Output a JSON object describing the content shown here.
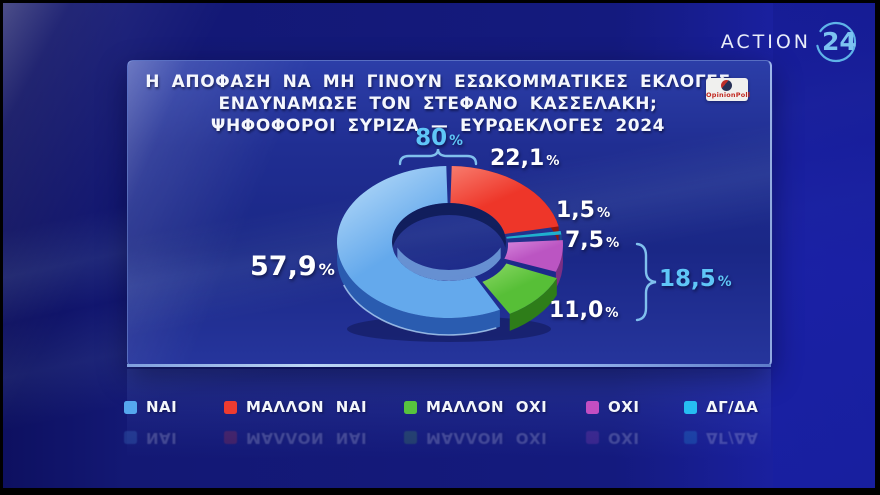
{
  "channel": {
    "word": "ACTION",
    "number": "24"
  },
  "poll_brand": "OpinionPoll",
  "accent_blue": "#5fc6f7",
  "chart_data": {
    "type": "donut",
    "title_lines": [
      "Η ΑΠΟΦΑΣΗ ΝΑ ΜΗ ΓΙΝΟΥΝ ΕΣΩΚΟΜΜΑΤΙΚΕΣ ΕΚΛΟΓΕΣ",
      "ΕΝΔΥΝΑΜΩΣΕ ΤΟΝ ΣΤΕΦΑΝΟ ΚΑΣΣΕΛΑΚΗ;",
      "ΨΗΦΟΦΟΡΟΙ ΣΥΡΙΖΑ — ΕΥΡΩΕΚΛΟΓΕΣ 2024"
    ],
    "percent_sign": "%",
    "slices": [
      {
        "label": "ΜΑΛΛΟΝ ΝΑΙ",
        "value": 22.1,
        "display": "22,1",
        "color": "#ee3629",
        "light": "#f87c6e",
        "dark": "#8e150e",
        "explode": [
          0,
          0
        ]
      },
      {
        "label": "ΔΓ/ΔΑ",
        "value": 1.5,
        "display": "1,5",
        "color": "#1fb0ce",
        "light": "#5ad2e6",
        "dark": "#0c7a92",
        "explode": [
          1,
          1
        ]
      },
      {
        "label": "ΟΧΙ",
        "value": 7.5,
        "display": "7,5",
        "color": "#bb55c2",
        "light": "#d685dc",
        "dark": "#7c2e84",
        "explode": [
          2,
          3
        ]
      },
      {
        "label": "ΜΑΛΛΟΝ ΟΧΙ",
        "value": 11.0,
        "display": "11,0",
        "color": "#57bf37",
        "light": "#8cd966",
        "dark": "#2e7d19",
        "explode": [
          5,
          6
        ]
      },
      {
        "label": "ΝΑΙ",
        "value": 57.9,
        "display": "57,9",
        "color": "#64a9ec",
        "light": "#bfe0fa",
        "dark": "#2a5cb0",
        "explode": [
          0,
          0
        ]
      }
    ],
    "aggregates": [
      {
        "display": "80",
        "groups": "ΝΑΙ + ΜΑΛΛΟΝ ΝΑΙ"
      },
      {
        "display": "18,5",
        "groups": "ΟΧΙ + ΜΑΛΛΟΝ ΟΧΙ"
      }
    ]
  },
  "legend": {
    "items": [
      {
        "label": "ΝΑΙ",
        "color": "#55a7ee"
      },
      {
        "label": "ΜΑΛΛΟΝ ΝΑΙ",
        "color": "#ee3b30"
      },
      {
        "label": "ΜΑΛΛΟΝ ΟΧΙ",
        "color": "#57c33e"
      },
      {
        "label": "ΟΧΙ",
        "color": "#c24ec2"
      },
      {
        "label": "ΔΓ/ΔΑ",
        "color": "#26bdf2"
      }
    ]
  }
}
